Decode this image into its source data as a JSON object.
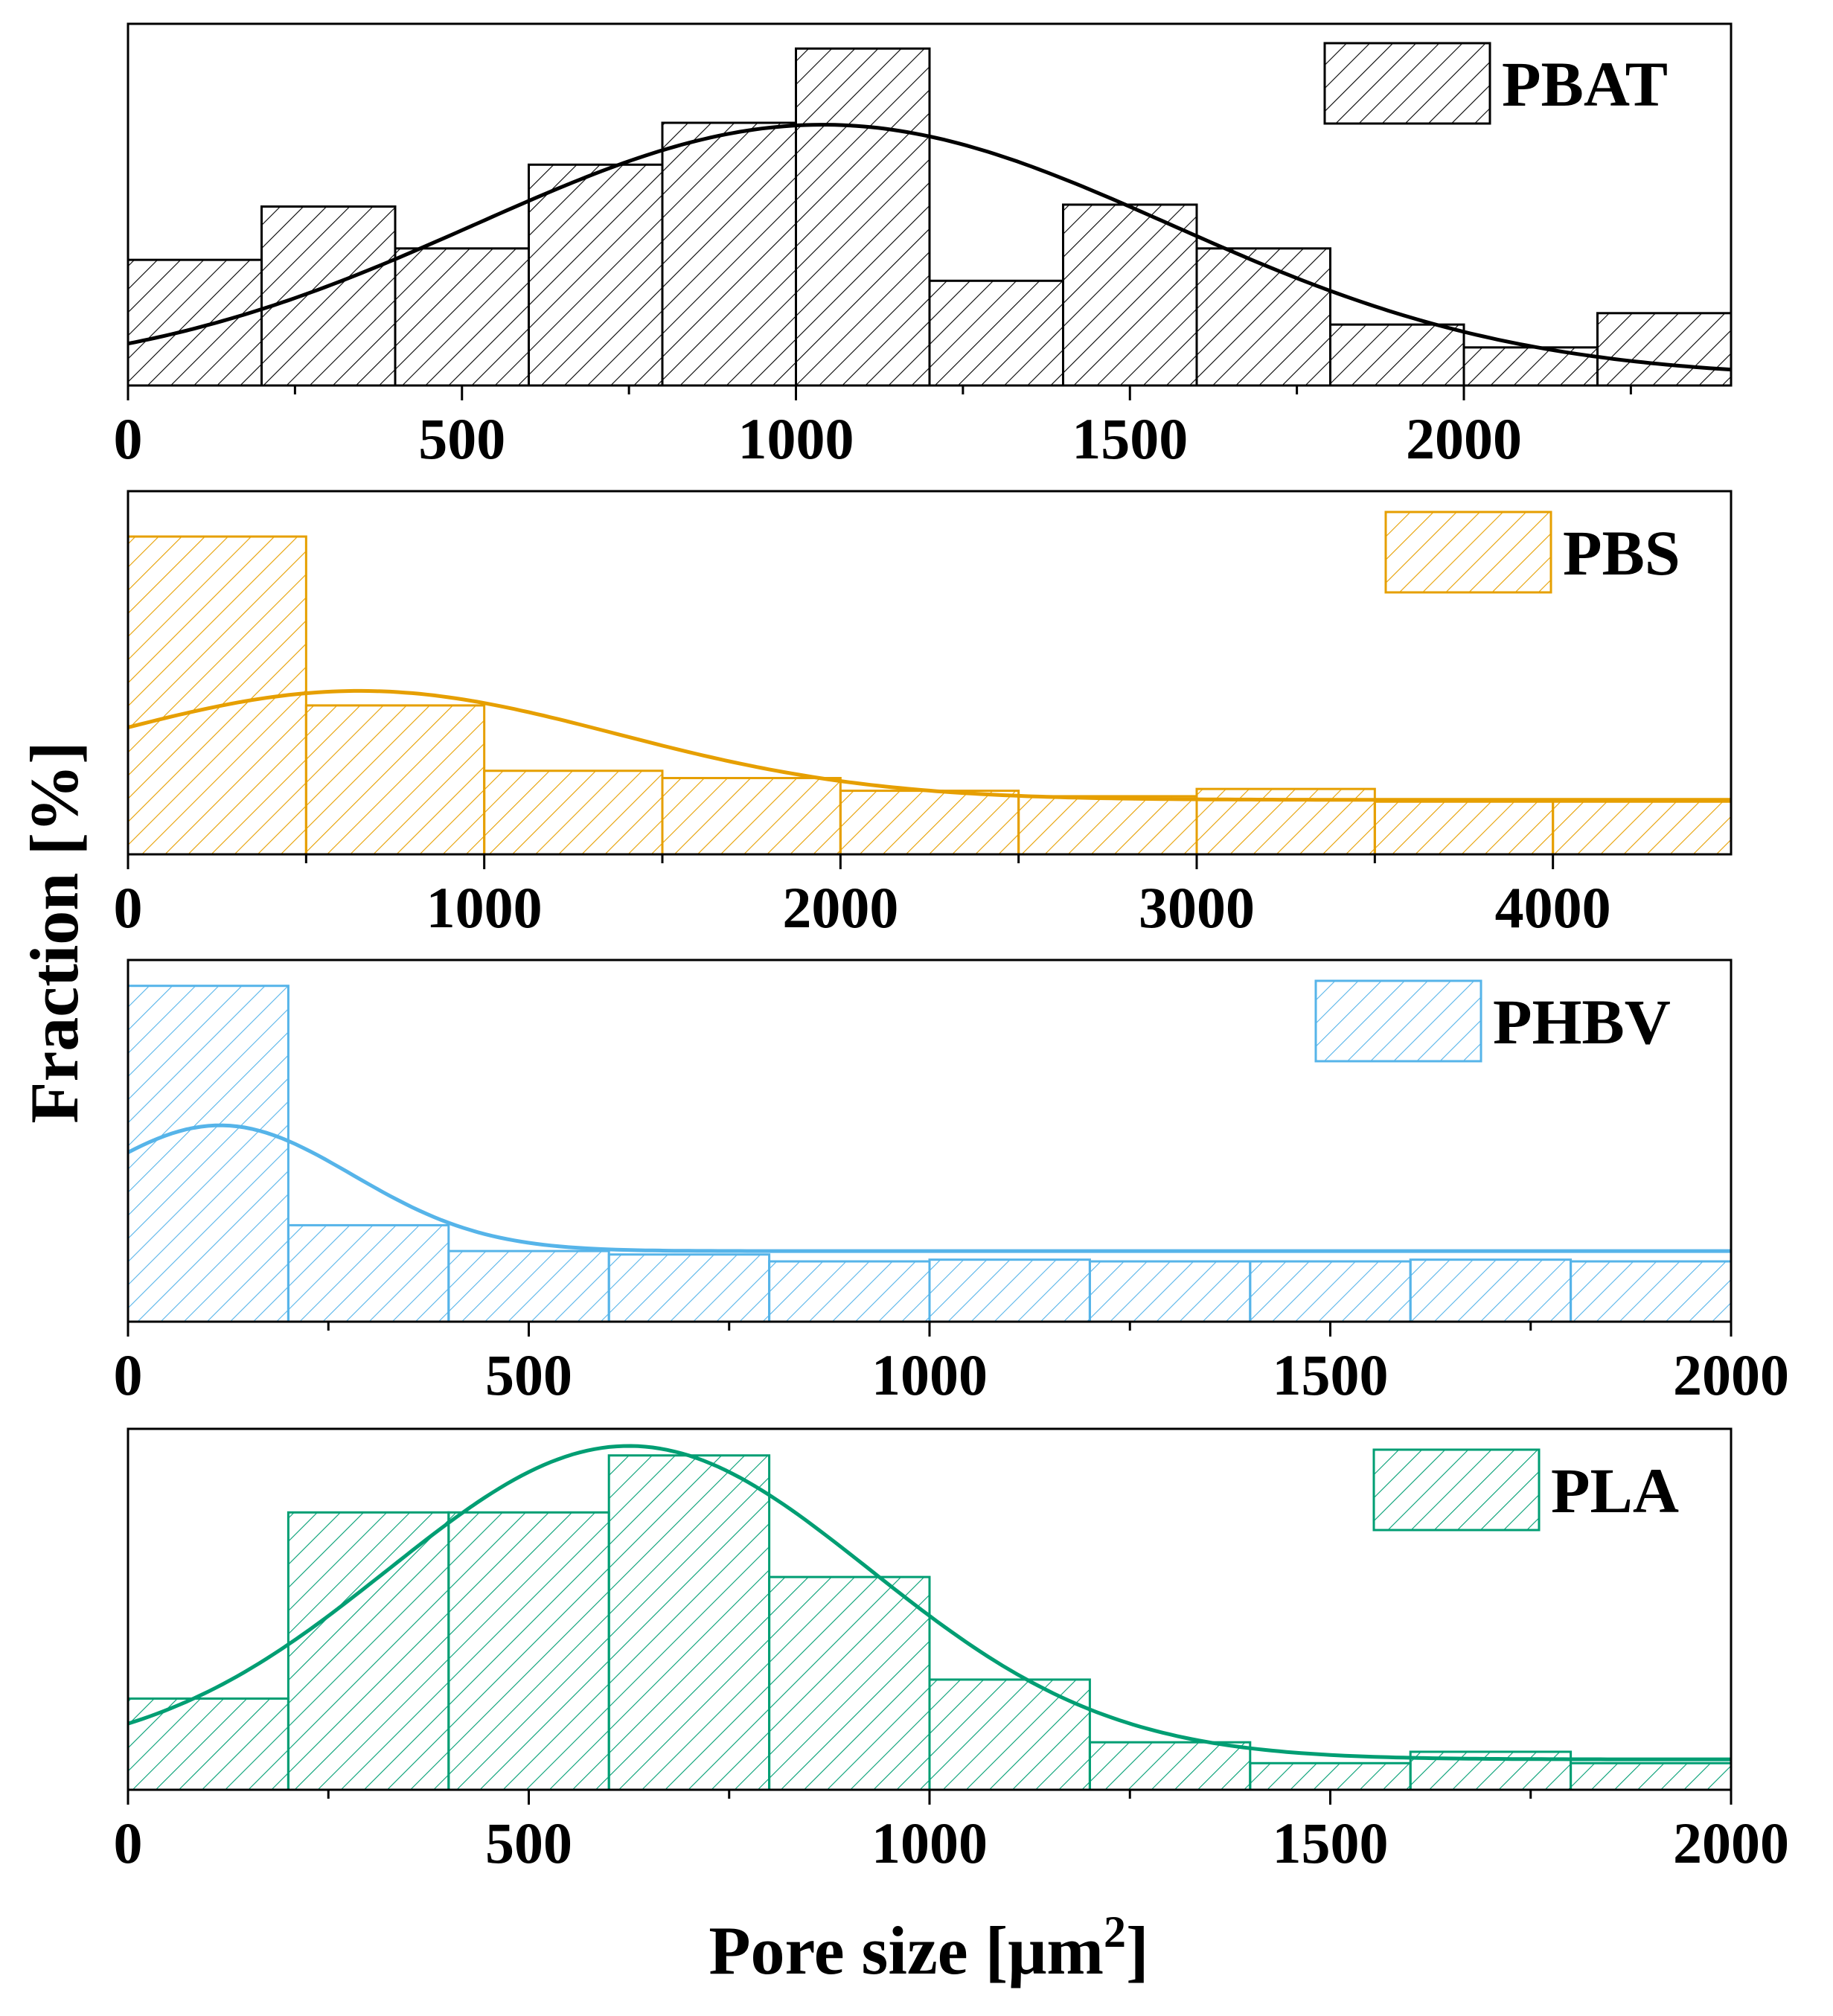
{
  "figure": {
    "ylabel": "Fraction [%]",
    "xlabel": "Pore size [μm",
    "xlabel_sup": "2",
    "xlabel_close": "]"
  },
  "chart_data": [
    {
      "type": "bar",
      "name": "PBAT",
      "legend": "PBAT",
      "color": "#000000",
      "bin_width": 200,
      "bins_start": [
        0,
        200,
        400,
        600,
        800,
        1000,
        1200,
        1400,
        1600,
        1800,
        2000,
        2200
      ],
      "values": [
        6.6,
        9.4,
        7.2,
        11.6,
        13.8,
        17.7,
        5.5,
        9.5,
        7.2,
        3.2,
        2.0,
        3.8
      ],
      "fit": {
        "kind": "gaussian",
        "base": 0.4,
        "amplitude": 13.3,
        "center": 1040,
        "sigma": 520
      },
      "xlim": [
        0,
        2400
      ],
      "ylim": [
        0,
        19
      ],
      "xticks": [
        0,
        500,
        1000,
        1500,
        2000
      ],
      "xminor": [
        250,
        750,
        1250,
        1750,
        2250
      ]
    },
    {
      "type": "bar",
      "name": "PBS",
      "legend": "PBS",
      "color": "#E69F00",
      "bin_width": 500,
      "bins_start": [
        0,
        500,
        1000,
        1500,
        2000,
        2500,
        3000,
        3500,
        4000
      ],
      "values": [
        17.5,
        8.2,
        4.6,
        4.2,
        3.5,
        3.2,
        3.6,
        2.9,
        2.9
      ],
      "fit": {
        "kind": "gaussian",
        "base": 3.0,
        "amplitude": 6.0,
        "center": 650,
        "sigma": 720
      },
      "xlim": [
        0,
        4500
      ],
      "ylim": [
        0,
        20
      ],
      "xticks": [
        0,
        1000,
        2000,
        3000,
        4000
      ],
      "xminor": [
        500,
        1500,
        2500,
        3500
      ]
    },
    {
      "type": "bar",
      "name": "PHBV",
      "legend": "PHBV",
      "color": "#56B4E9",
      "bin_width": 200,
      "bins_start": [
        0,
        200,
        400,
        600,
        800,
        1000,
        1200,
        1400,
        1600,
        1800
      ],
      "values": [
        19.5,
        5.6,
        4.1,
        3.9,
        3.5,
        3.6,
        3.5,
        3.5,
        3.6,
        3.5
      ],
      "fit": {
        "kind": "gaussian",
        "base": 4.1,
        "amplitude": 7.3,
        "center": 115,
        "sigma": 165
      },
      "xlim": [
        0,
        2000
      ],
      "ylim": [
        0,
        21
      ],
      "xticks": [
        0,
        500,
        1000,
        1500,
        2000
      ],
      "xminor": [
        250,
        750,
        1250,
        1750
      ]
    },
    {
      "type": "bar",
      "name": "PLA",
      "legend": "PLA",
      "color": "#009E73",
      "bin_width": 200,
      "bins_start": [
        0,
        200,
        400,
        600,
        800,
        1000,
        1200,
        1400,
        1600,
        1800
      ],
      "values": [
        4.8,
        14.6,
        14.6,
        17.6,
        11.2,
        5.8,
        2.5,
        1.4,
        2.0,
        1.4
      ],
      "fit": {
        "kind": "gaussian",
        "base": 1.6,
        "amplitude": 16.5,
        "center": 625,
        "sigma": 300
      },
      "xlim": [
        0,
        2000
      ],
      "ylim": [
        0,
        19
      ],
      "xticks": [
        0,
        500,
        1000,
        1500,
        2000
      ],
      "xminor": [
        250,
        750,
        1250,
        1750
      ]
    }
  ]
}
